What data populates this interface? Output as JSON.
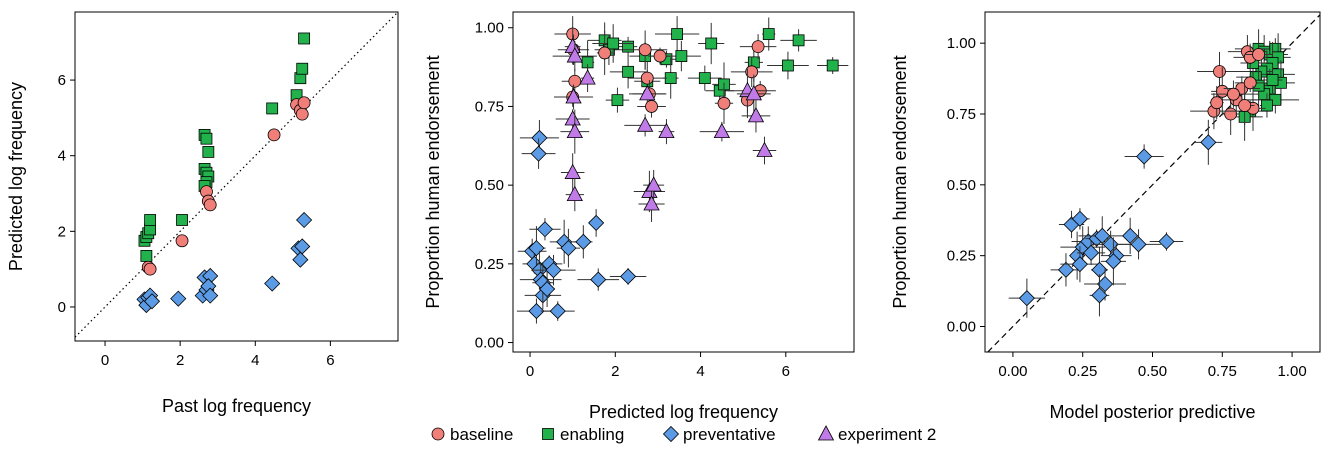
{
  "legend": {
    "items": [
      {
        "label": "baseline",
        "color": "#F07F7A",
        "shape": "circle"
      },
      {
        "label": "enabling",
        "color": "#22B24C",
        "shape": "square"
      },
      {
        "label": "preventative",
        "color": "#5B9BE6",
        "shape": "diamond"
      },
      {
        "label": "experiment 2",
        "color": "#C07BE8",
        "shape": "triangle"
      }
    ]
  },
  "chart_data": [
    {
      "type": "scatter",
      "xlabel": "Past log frequency",
      "ylabel": "Predicted log frequency",
      "xlim": [
        -0.8,
        7.8
      ],
      "ylim": [
        -0.9,
        7.8
      ],
      "xticks": [
        "0",
        "2",
        "4",
        "6"
      ],
      "yticks": [
        "0",
        "2",
        "4",
        "6"
      ],
      "reference_line": "dotted identity",
      "series": [
        {
          "key": "enabling",
          "shape": "square",
          "color": "#22B24C",
          "points": [
            [
              1.05,
              1.75
            ],
            [
              1.1,
              1.85
            ],
            [
              1.15,
              1.95
            ],
            [
              1.2,
              2.05
            ],
            [
              1.2,
              2.3
            ],
            [
              1.1,
              1.35
            ],
            [
              2.05,
              2.3
            ],
            [
              2.65,
              4.55
            ],
            [
              2.7,
              4.45
            ],
            [
              2.75,
              4.1
            ],
            [
              2.65,
              3.65
            ],
            [
              2.7,
              3.55
            ],
            [
              2.75,
              3.45
            ],
            [
              2.7,
              3.3
            ],
            [
              2.65,
              3.2
            ],
            [
              4.45,
              5.25
            ],
            [
              5.1,
              5.6
            ],
            [
              5.2,
              6.05
            ],
            [
              5.25,
              6.3
            ],
            [
              5.3,
              7.1
            ]
          ]
        },
        {
          "key": "baseline",
          "shape": "circle",
          "color": "#F07F7A",
          "points": [
            [
              1.15,
              1.05
            ],
            [
              1.2,
              1.0
            ],
            [
              2.05,
              1.75
            ],
            [
              2.7,
              3.05
            ],
            [
              2.75,
              2.8
            ],
            [
              2.8,
              2.7
            ],
            [
              4.5,
              4.55
            ],
            [
              5.1,
              5.35
            ],
            [
              5.2,
              5.2
            ],
            [
              5.25,
              5.1
            ],
            [
              5.3,
              5.4
            ]
          ]
        },
        {
          "key": "preventative",
          "shape": "diamond",
          "color": "#5B9BE6",
          "points": [
            [
              1.05,
              0.2
            ],
            [
              1.1,
              0.05
            ],
            [
              1.15,
              0.25
            ],
            [
              1.2,
              0.3
            ],
            [
              1.25,
              0.15
            ],
            [
              1.95,
              0.22
            ],
            [
              2.6,
              0.3
            ],
            [
              2.65,
              0.78
            ],
            [
              2.7,
              0.45
            ],
            [
              2.8,
              0.82
            ],
            [
              2.75,
              0.55
            ],
            [
              2.8,
              0.3
            ],
            [
              4.45,
              0.62
            ],
            [
              5.15,
              1.55
            ],
            [
              5.2,
              1.25
            ],
            [
              5.25,
              1.6
            ],
            [
              5.3,
              2.3
            ]
          ]
        }
      ]
    },
    {
      "type": "scatter",
      "xlabel": "Predicted log frequency",
      "ylabel": "Proportion human endorsement",
      "xlim": [
        -0.4,
        7.6
      ],
      "ylim": [
        -0.03,
        1.05
      ],
      "xticks": [
        "0",
        "2",
        "4",
        "6"
      ],
      "yticks": [
        "0.00",
        "0.25",
        "0.50",
        "0.75",
        "1.00"
      ],
      "error_bars": true,
      "series": [
        {
          "key": "enabling",
          "shape": "square",
          "color": "#22B24C",
          "points": [
            [
              1.75,
              0.96
            ],
            [
              1.85,
              0.93
            ],
            [
              2.05,
              0.77
            ],
            [
              2.3,
              0.94
            ],
            [
              1.35,
              0.89
            ],
            [
              1.95,
              0.95
            ],
            [
              2.3,
              0.86
            ],
            [
              2.7,
              0.91
            ],
            [
              2.75,
              0.83
            ],
            [
              3.2,
              0.9
            ],
            [
              3.3,
              0.84
            ],
            [
              3.45,
              0.98
            ],
            [
              3.55,
              0.91
            ],
            [
              4.1,
              0.84
            ],
            [
              4.45,
              0.8
            ],
            [
              4.55,
              0.82
            ],
            [
              5.25,
              0.89
            ],
            [
              5.6,
              0.98
            ],
            [
              6.05,
              0.88
            ],
            [
              6.3,
              0.96
            ],
            [
              7.1,
              0.88
            ],
            [
              4.25,
              0.95
            ]
          ]
        },
        {
          "key": "baseline",
          "shape": "circle",
          "color": "#F07F7A",
          "points": [
            [
              1.0,
              0.98
            ],
            [
              1.02,
              0.93
            ],
            [
              1.05,
              0.83
            ],
            [
              1.0,
              0.78
            ],
            [
              1.75,
              0.92
            ],
            [
              2.7,
              0.93
            ],
            [
              2.75,
              0.84
            ],
            [
              2.8,
              0.79
            ],
            [
              2.85,
              0.75
            ],
            [
              3.05,
              0.91
            ],
            [
              4.55,
              0.76
            ],
            [
              5.1,
              0.77
            ],
            [
              5.2,
              0.86
            ],
            [
              5.35,
              0.94
            ],
            [
              5.4,
              0.8
            ]
          ]
        },
        {
          "key": "experiment 2",
          "shape": "triangle",
          "color": "#C07BE8",
          "points": [
            [
              1.0,
              0.94
            ],
            [
              1.05,
              0.91
            ],
            [
              1.02,
              0.78
            ],
            [
              1.0,
              0.71
            ],
            [
              1.05,
              0.67
            ],
            [
              1.0,
              0.54
            ],
            [
              1.05,
              0.47
            ],
            [
              1.35,
              0.84
            ],
            [
              2.7,
              0.69
            ],
            [
              2.75,
              0.79
            ],
            [
              2.8,
              0.48
            ],
            [
              2.85,
              0.44
            ],
            [
              2.9,
              0.5
            ],
            [
              3.2,
              0.67
            ],
            [
              4.5,
              0.67
            ],
            [
              5.1,
              0.8
            ],
            [
              5.25,
              0.79
            ],
            [
              5.3,
              0.72
            ],
            [
              5.5,
              0.61
            ]
          ]
        },
        {
          "key": "preventative",
          "shape": "diamond",
          "color": "#5B9BE6",
          "points": [
            [
              0.22,
              0.65
            ],
            [
              0.2,
              0.6
            ],
            [
              0.05,
              0.29
            ],
            [
              0.1,
              0.25
            ],
            [
              0.15,
              0.3
            ],
            [
              0.22,
              0.23
            ],
            [
              0.25,
              0.2
            ],
            [
              0.3,
              0.15
            ],
            [
              0.35,
              0.36
            ],
            [
              0.45,
              0.25
            ],
            [
              0.3,
              0.19
            ],
            [
              0.4,
              0.17
            ],
            [
              0.55,
              0.23
            ],
            [
              0.15,
              0.1
            ],
            [
              0.65,
              0.1
            ],
            [
              0.8,
              0.32
            ],
            [
              0.9,
              0.3
            ],
            [
              1.25,
              0.32
            ],
            [
              1.55,
              0.38
            ],
            [
              1.6,
              0.2
            ],
            [
              2.3,
              0.21
            ]
          ]
        }
      ]
    },
    {
      "type": "scatter",
      "xlabel": "Model posterior predictive",
      "ylabel": "Proportion human endorsement",
      "xlim": [
        -0.1,
        1.1
      ],
      "ylim": [
        -0.09,
        1.11
      ],
      "xticks": [
        "0.00",
        "0.25",
        "0.50",
        "0.75",
        "1.00"
      ],
      "yticks": [
        "0.00",
        "0.25",
        "0.50",
        "0.75",
        "1.00"
      ],
      "reference_line": "dashed identity",
      "error_bars": true,
      "series": [
        {
          "key": "enabling",
          "shape": "square",
          "color": "#22B24C",
          "points": [
            [
              0.88,
              0.98
            ],
            [
              0.9,
              0.97
            ],
            [
              0.92,
              0.96
            ],
            [
              0.94,
              0.98
            ],
            [
              0.95,
              0.95
            ],
            [
              0.93,
              0.93
            ],
            [
              0.91,
              0.91
            ],
            [
              0.89,
              0.9
            ],
            [
              0.87,
              0.88
            ],
            [
              0.95,
              0.89
            ],
            [
              0.96,
              0.86
            ],
            [
              0.92,
              0.84
            ],
            [
              0.9,
              0.82
            ],
            [
              0.94,
              0.8
            ],
            [
              0.85,
              0.76
            ],
            [
              0.83,
              0.74
            ],
            [
              0.88,
              0.85
            ],
            [
              0.86,
              0.93
            ],
            [
              0.93,
              0.87
            ],
            [
              0.91,
              0.78
            ]
          ]
        },
        {
          "key": "baseline",
          "shape": "circle",
          "color": "#F07F7A",
          "points": [
            [
              0.74,
              0.9
            ],
            [
              0.84,
              0.97
            ],
            [
              0.85,
              0.95
            ],
            [
              0.88,
              0.96
            ],
            [
              0.75,
              0.83
            ],
            [
              0.78,
              0.75
            ],
            [
              0.72,
              0.76
            ],
            [
              0.8,
              0.8
            ],
            [
              0.82,
              0.84
            ],
            [
              0.85,
              0.86
            ],
            [
              0.86,
              0.77
            ],
            [
              0.83,
              0.78
            ],
            [
              0.73,
              0.79
            ],
            [
              0.79,
              0.82
            ]
          ]
        },
        {
          "key": "preventative",
          "shape": "diamond",
          "color": "#5B9BE6",
          "points": [
            [
              0.05,
              0.1
            ],
            [
              0.19,
              0.2
            ],
            [
              0.21,
              0.36
            ],
            [
              0.24,
              0.38
            ],
            [
              0.23,
              0.25
            ],
            [
              0.25,
              0.28
            ],
            [
              0.24,
              0.22
            ],
            [
              0.27,
              0.3
            ],
            [
              0.28,
              0.26
            ],
            [
              0.3,
              0.31
            ],
            [
              0.31,
              0.2
            ],
            [
              0.32,
              0.32
            ],
            [
              0.33,
              0.15
            ],
            [
              0.35,
              0.29
            ],
            [
              0.37,
              0.25
            ],
            [
              0.36,
              0.23
            ],
            [
              0.31,
              0.11
            ],
            [
              0.42,
              0.32
            ],
            [
              0.45,
              0.29
            ],
            [
              0.47,
              0.6
            ],
            [
              0.55,
              0.3
            ],
            [
              0.7,
              0.65
            ]
          ]
        }
      ]
    }
  ]
}
